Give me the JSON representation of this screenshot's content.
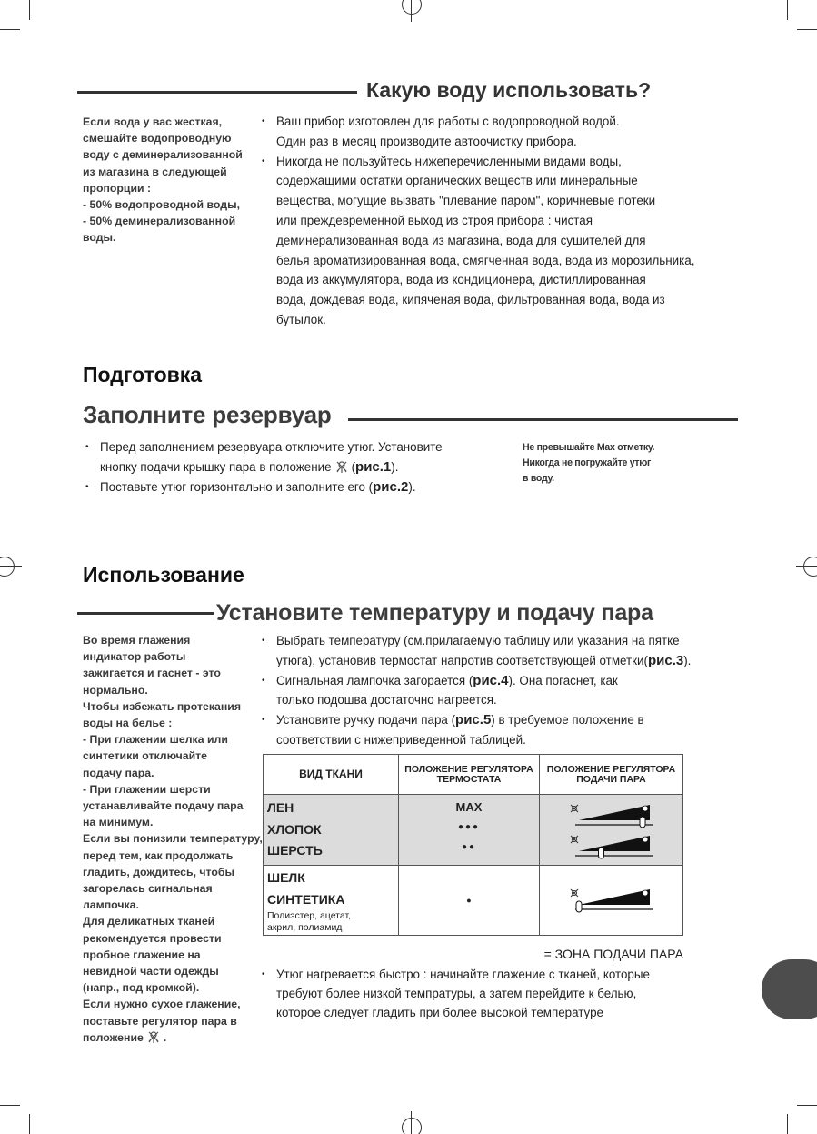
{
  "section_water": {
    "title": "Какую воду использовать?",
    "side_note": [
      "Если вода у вас жесткая,",
      "смешайте водопроводную",
      "воду с деминерализованной",
      "из магазина в следующей",
      "пропорции :",
      "- 50% водопроводной воды,",
      "- 50% деминерализованной",
      "воды."
    ],
    "bullets": [
      {
        "lines": [
          [
            {
              "t": "Ваш прибор изготовлен для работы с водопроводной водой."
            }
          ],
          [
            {
              "t": "Один раз в месяц производите автоочистку прибора."
            }
          ]
        ]
      },
      {
        "lines": [
          [
            {
              "t": "Никогда не пользуйтесь нижеперечисленными видами воды,"
            }
          ],
          [
            {
              "t": "содержащими остатки органических веществ или минеральные"
            }
          ],
          [
            {
              "t": "вещества, могущие вызвать \"плевание паром\", коричневые потеки"
            }
          ],
          [
            {
              "t": "или преждевременной выход из строя прибора : чистая"
            }
          ],
          [
            {
              "t": "деминерализованная вода из магазина, вода для сушителей для"
            }
          ],
          [
            {
              "t": "белья ароматизированная вода, смягченная вода, вода из морозильника,"
            }
          ],
          [
            {
              "t": "вода из аккумулятора, вода из кондиционера, дистиллированная"
            }
          ],
          [
            {
              "t": "вода, дождевая вода, кипяченая вода, фильтрованная вода, вода из"
            }
          ],
          [
            {
              "t": "бутылок."
            }
          ]
        ]
      }
    ]
  },
  "section_prep": {
    "title": "Подготовка",
    "subtitle": "Заполните резервуар",
    "bullets": [
      {
        "lines": [
          [
            {
              "t": "Перед заполнением резервуара отключите утюг. Установите"
            }
          ],
          [
            {
              "t": "кнопку подачи крышку пара в положение"
            },
            {
              "icon": "dry-steam-icon"
            },
            {
              "t": "("
            },
            {
              "t": "рис.1",
              "b": true
            },
            {
              "t": ")."
            }
          ]
        ]
      },
      {
        "lines": [
          [
            {
              "t": "Поставьте утюг горизонтально и заполните его ("
            },
            {
              "t": "рис.2",
              "b": true
            },
            {
              "t": ")."
            }
          ]
        ]
      }
    ],
    "side_note": [
      "Не превышайте Max отметку.",
      "Никогда не погружайте утюг",
      "в воду."
    ]
  },
  "section_use": {
    "title": "Использование",
    "subtitle": "Установите температуру и подачу пара",
    "side_note": [
      "Во время глажения",
      "индикатор работы",
      "зажигается и гаснет - это",
      "нормально.",
      "Чтобы избежать протекания",
      "воды на белье :",
      "- При глажении шелка или",
      "синтетики отключайте",
      "подачу пара.",
      "- При глажении шерсти",
      "устанавливайте подачу пара",
      "на минимум.",
      "Если вы понизили температуру,",
      "перед тем, как продолжать",
      "гладить, дождитесь, чтобы",
      "загорелась сигнальная",
      "лампочка.",
      "Для деликатных тканей",
      "рекомендуется провести",
      "пробное глажение на",
      "невидной части одежды",
      "(напр., под кромкой).",
      "Если нужно сухое глажение,",
      "поставьте регулятор пара в"
    ],
    "side_note_last": "положение",
    "side_note_end": ".",
    "bullets": [
      {
        "lines": [
          [
            {
              "t": "Выбрать температуру (см.прилагаемую таблицу или указания на пятке"
            }
          ],
          [
            {
              "t": "утюга), установив термостат напротив соответствующей отметки("
            },
            {
              "t": "рис.3",
              "b": true
            },
            {
              "t": ")."
            }
          ]
        ]
      },
      {
        "lines": [
          [
            {
              "t": "Сигнальная лампочка загорается ("
            },
            {
              "t": "рис.4",
              "b": true
            },
            {
              "t": "). Она погаснет, как"
            }
          ],
          [
            {
              "t": "только подошва достаточно нагреется."
            }
          ]
        ]
      },
      {
        "lines": [
          [
            {
              "t": "Установите ручку подачи пара ("
            },
            {
              "t": "рис.5",
              "b": true
            },
            {
              "t": ") в требуемое положение в"
            }
          ],
          [
            {
              "t": "соответствии с нижеприведенной таблицей."
            }
          ]
        ]
      }
    ],
    "table": {
      "headers": [
        "ВИД ТКАНИ",
        "ПОЛОЖЕНИЕ РЕГУЛЯТОРА ТЕРМОСТАТА",
        "ПОЛОЖЕНИЕ РЕГУЛЯТОРА ПОДАЧИ ПАРА"
      ],
      "group1": {
        "fabrics": [
          "ЛЕН",
          "ХЛОПОК",
          "ШЕРСТЬ"
        ],
        "settings": [
          "MAX",
          "●●●",
          "●●"
        ],
        "steam_levels": [
          1.0,
          0.35
        ]
      },
      "group2": {
        "fabrics": [
          "ШЕЛК",
          "СИНТЕТИКА"
        ],
        "fabric_note": [
          "Полиэстер, ацетат,",
          "акрил, полиамид"
        ],
        "settings": [
          "●"
        ],
        "steam_levels": [
          0
        ]
      },
      "legend": "= ЗОНА ПОДАЧИ ПАРА"
    },
    "final_bullet": {
      "lines": [
        [
          {
            "t": "Утюг нагревается быстро : начинайте глажение с тканей, которые"
          }
        ],
        [
          {
            "t": "требуют более низкой темпратуры, а затем перейдите к белью,"
          }
        ],
        [
          {
            "t": "которое следует гладить при более высокой температуре"
          }
        ]
      ]
    }
  },
  "colors": {
    "tab": "#4d4d4d",
    "table_shade": "#dcdcdc"
  }
}
